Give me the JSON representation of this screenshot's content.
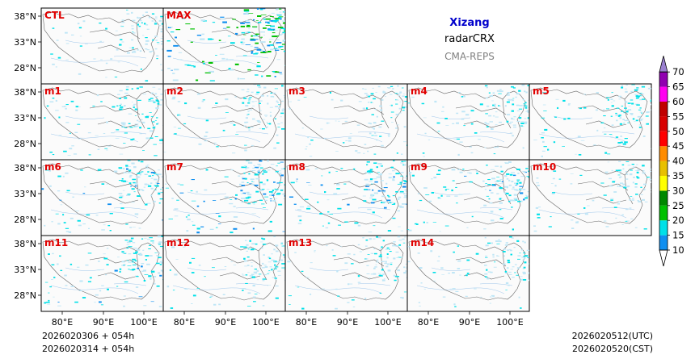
{
  "header": {
    "region": "Xizang",
    "variable": "radarCRX",
    "model": "CMA-REPS"
  },
  "panels": [
    {
      "label": "CTL",
      "intensity": 0.4,
      "seed": 11
    },
    {
      "label": "MAX",
      "intensity": 1.0,
      "seed": 12
    },
    {
      "label": "m1",
      "intensity": 0.55,
      "seed": 1
    },
    {
      "label": "m2",
      "intensity": 0.45,
      "seed": 2
    },
    {
      "label": "m3",
      "intensity": 0.4,
      "seed": 3
    },
    {
      "label": "m4",
      "intensity": 0.5,
      "seed": 4
    },
    {
      "label": "m5",
      "intensity": 0.55,
      "seed": 5
    },
    {
      "label": "m6",
      "intensity": 0.6,
      "seed": 6
    },
    {
      "label": "m7",
      "intensity": 0.7,
      "seed": 7
    },
    {
      "label": "m8",
      "intensity": 0.65,
      "seed": 8
    },
    {
      "label": "m9",
      "intensity": 0.6,
      "seed": 9
    },
    {
      "label": "m10",
      "intensity": 0.45,
      "seed": 10
    },
    {
      "label": "m11",
      "intensity": 0.6,
      "seed": 13
    },
    {
      "label": "m12",
      "intensity": 0.5,
      "seed": 14
    },
    {
      "label": "m13",
      "intensity": 0.45,
      "seed": 15
    },
    {
      "label": "m14",
      "intensity": 0.45,
      "seed": 16
    }
  ],
  "axes": {
    "y_ticks": [
      "38°N",
      "33°N",
      "28°N"
    ],
    "x_ticks": [
      "80°E",
      "90°E",
      "100°E"
    ]
  },
  "colorbar": {
    "levels": [
      "10",
      "15",
      "20",
      "25",
      "30",
      "35",
      "40",
      "45",
      "50",
      "55",
      "60",
      "65",
      "70"
    ],
    "colors": [
      "#0f8ff0",
      "#00e0e8",
      "#00c000",
      "#008800",
      "#ffff00",
      "#e8c000",
      "#ff8c00",
      "#ff0000",
      "#d80000",
      "#c00000",
      "#ff00f0",
      "#9000b0",
      "#9a80d0"
    ],
    "over_color": "#9a80d0",
    "under_color": "#ffffff"
  },
  "footer": {
    "init_utc": "2026020306  +  054h",
    "init_cst": "2026020314  +  054h",
    "valid_utc": "2026020512(UTC)",
    "valid_cst": "2026020520(CST)"
  }
}
